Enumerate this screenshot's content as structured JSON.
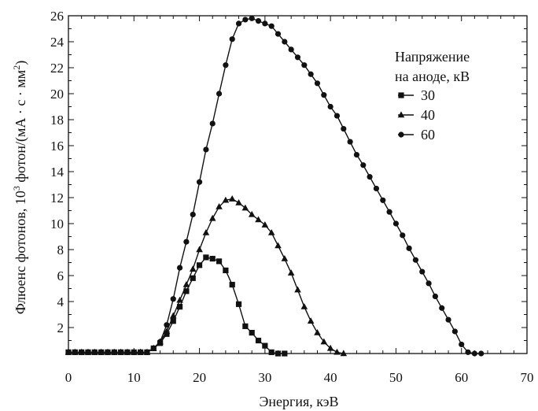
{
  "chart_data": {
    "type": "line",
    "title": "",
    "xlabel": "Энергия, кэВ",
    "ylabel_prefix": "Флюенс фотонов, 10",
    "ylabel_exp": "3",
    "ylabel_mid": " фотон/(мА · с · мм",
    "ylabel_exp2": "2",
    "ylabel_suffix": ")",
    "xlim": [
      0,
      70
    ],
    "ylim": [
      0,
      26
    ],
    "xticks": [
      0,
      10,
      20,
      30,
      40,
      50,
      60,
      70
    ],
    "yticks": [
      2,
      4,
      6,
      8,
      10,
      12,
      14,
      16,
      18,
      20,
      22,
      24,
      26
    ],
    "grid": false,
    "legend": {
      "title_line1": "Напряжение",
      "title_line2": "на аноде, кВ",
      "placement": "top-right"
    },
    "series": [
      {
        "name": "30",
        "marker": "square",
        "x": [
          0,
          1,
          2,
          3,
          4,
          5,
          6,
          7,
          8,
          9,
          10,
          11,
          12,
          13,
          14,
          15,
          16,
          17,
          18,
          19,
          20,
          21,
          22,
          23,
          24,
          25,
          26,
          27,
          28,
          29,
          30,
          31,
          32,
          33
        ],
        "y": [
          0.1,
          0.1,
          0.1,
          0.1,
          0.1,
          0.1,
          0.1,
          0.1,
          0.1,
          0.1,
          0.1,
          0.1,
          0.1,
          0.4,
          0.8,
          1.5,
          2.5,
          3.6,
          4.8,
          5.8,
          6.8,
          7.4,
          7.3,
          7.1,
          6.4,
          5.3,
          3.8,
          2.1,
          1.6,
          1.0,
          0.6,
          0.1,
          0.0,
          0.0
        ]
      },
      {
        "name": "40",
        "marker": "triangle",
        "x": [
          0,
          1,
          2,
          3,
          4,
          5,
          6,
          7,
          8,
          9,
          10,
          11,
          12,
          13,
          14,
          15,
          16,
          17,
          18,
          19,
          20,
          21,
          22,
          23,
          24,
          25,
          26,
          27,
          28,
          29,
          30,
          31,
          32,
          33,
          34,
          35,
          36,
          37,
          38,
          39,
          40,
          41,
          42
        ],
        "y": [
          0.1,
          0.1,
          0.1,
          0.1,
          0.1,
          0.1,
          0.1,
          0.1,
          0.1,
          0.1,
          0.1,
          0.1,
          0.1,
          0.4,
          0.9,
          1.7,
          2.9,
          4.1,
          5.3,
          6.5,
          8.0,
          9.3,
          10.4,
          11.3,
          11.8,
          11.9,
          11.6,
          11.2,
          10.7,
          10.3,
          9.9,
          9.3,
          8.3,
          7.3,
          6.2,
          4.9,
          3.6,
          2.5,
          1.6,
          0.9,
          0.4,
          0.1,
          0.0
        ]
      },
      {
        "name": "60",
        "marker": "circle",
        "x": [
          0,
          1,
          2,
          3,
          4,
          5,
          6,
          7,
          8,
          9,
          10,
          11,
          12,
          13,
          14,
          15,
          16,
          17,
          18,
          19,
          20,
          21,
          22,
          23,
          24,
          25,
          26,
          27,
          28,
          29,
          30,
          31,
          32,
          33,
          34,
          35,
          36,
          37,
          38,
          39,
          40,
          41,
          42,
          43,
          44,
          45,
          46,
          47,
          48,
          49,
          50,
          51,
          52,
          53,
          54,
          55,
          56,
          57,
          58,
          59,
          60,
          61,
          62,
          63
        ],
        "y": [
          0.1,
          0.1,
          0.1,
          0.1,
          0.1,
          0.1,
          0.1,
          0.1,
          0.1,
          0.1,
          0.1,
          0.1,
          0.1,
          0.4,
          0.9,
          2.2,
          4.2,
          6.6,
          8.6,
          10.7,
          13.2,
          15.7,
          17.7,
          20.0,
          22.2,
          24.2,
          25.4,
          25.7,
          25.8,
          25.6,
          25.4,
          25.2,
          24.6,
          24.0,
          23.4,
          22.8,
          22.2,
          21.5,
          20.8,
          19.9,
          19.0,
          18.3,
          17.3,
          16.3,
          15.3,
          14.5,
          13.6,
          12.7,
          11.8,
          10.9,
          10.0,
          9.1,
          8.1,
          7.2,
          6.3,
          5.4,
          4.4,
          3.5,
          2.6,
          1.7,
          0.7,
          0.1,
          0.0,
          0.0
        ]
      }
    ]
  }
}
